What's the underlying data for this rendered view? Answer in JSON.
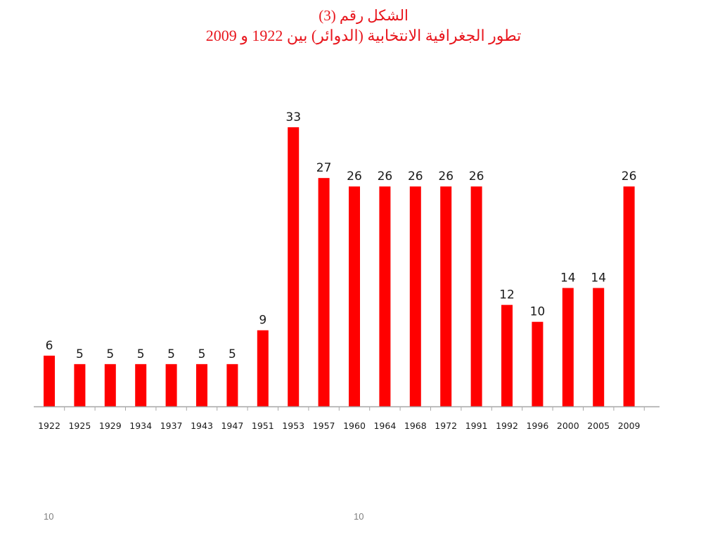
{
  "slide": {
    "title_line_1": "الشكل رقم (3)",
    "title_line_2": "تطور الجغرافية الانتخابية (الدوائر) بين 1922 و 2009",
    "footer_left": "10",
    "footer_center": "10"
  },
  "chart_data": {
    "type": "bar",
    "title": "",
    "xlabel": "",
    "ylabel": "",
    "categories": [
      "1922",
      "1925",
      "1929",
      "1934",
      "1937",
      "1943",
      "1947",
      "1951",
      "1953",
      "1957",
      "1960",
      "1964",
      "1968",
      "1972",
      "1991",
      "1992",
      "1996",
      "2000",
      "2005",
      "2009"
    ],
    "values": [
      6,
      5,
      5,
      5,
      5,
      5,
      5,
      9,
      33,
      27,
      26,
      26,
      26,
      26,
      26,
      12,
      10,
      14,
      14,
      26
    ],
    "data_labels": [
      "6",
      "5",
      "5",
      "5",
      "5",
      "5",
      "5",
      "9",
      "33",
      "27",
      "26",
      "26",
      "26",
      "26",
      "26",
      "12",
      "10",
      "14",
      "14",
      "26"
    ],
    "ylim": [
      0,
      33
    ],
    "grid": false,
    "legend": "none",
    "bar_color": "#ff0000",
    "axis_color": "#a6a6a6"
  }
}
